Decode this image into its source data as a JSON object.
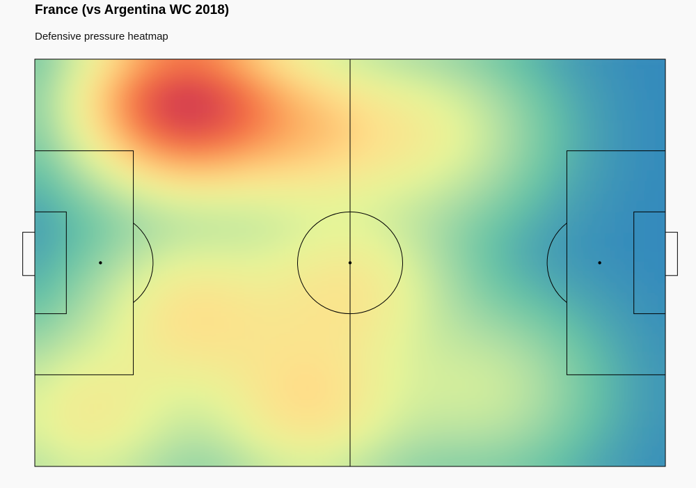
{
  "chart_data": {
    "type": "heatmap",
    "title": "France (vs Argentina WC 2018)",
    "subtitle": "Defensive pressure heatmap",
    "pitch": {
      "length": 120,
      "width": 80,
      "grid": false,
      "axes_visible": false
    },
    "colormap": [
      "#3288bd",
      "#66c2a5",
      "#abdda4",
      "#e6f598",
      "#fee08b",
      "#fdae61",
      "#f46d43",
      "#d53e4f"
    ],
    "density_peaks": [
      {
        "x": 28,
        "y": 9,
        "weight": 1.0
      },
      {
        "x": 52,
        "y": 14,
        "weight": 0.38
      },
      {
        "x": 30,
        "y": 50,
        "weight": 0.33
      },
      {
        "x": 52,
        "y": 68,
        "weight": 0.35
      },
      {
        "x": 60,
        "y": 45,
        "weight": 0.3
      },
      {
        "x": 75,
        "y": 15,
        "weight": 0.22
      },
      {
        "x": 10,
        "y": 70,
        "weight": 0.28
      },
      {
        "x": 85,
        "y": 65,
        "weight": 0.16
      }
    ]
  }
}
